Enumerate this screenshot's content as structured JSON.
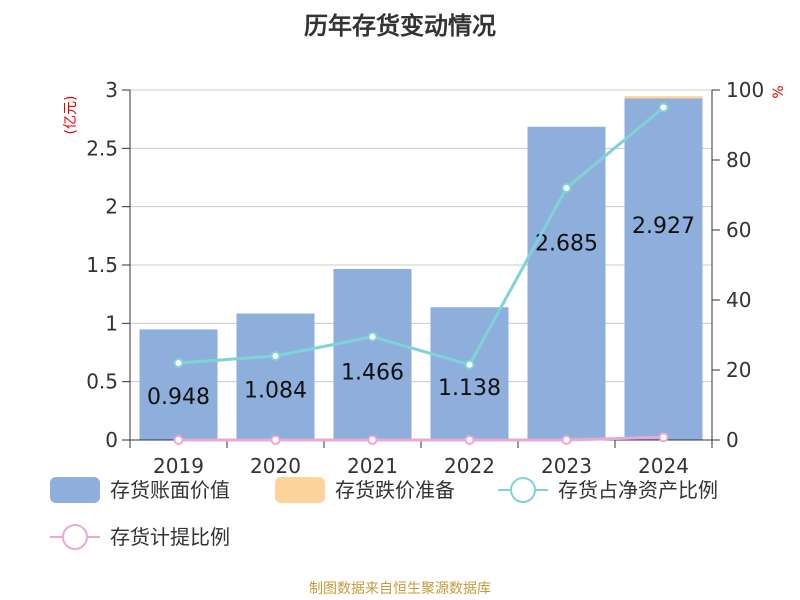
{
  "chart_data": {
    "type": "bar",
    "title": "历年存货变动情况",
    "left_unit": "(亿元)",
    "right_unit": "%",
    "categories": [
      "2019",
      "2020",
      "2021",
      "2022",
      "2023",
      "2024"
    ],
    "series": [
      {
        "name": "存货账面价值",
        "type": "bar",
        "axis": "left",
        "color": "#8eaedb",
        "values": [
          0.948,
          1.084,
          1.466,
          1.138,
          2.685,
          2.927
        ]
      },
      {
        "name": "存货跌价准备",
        "type": "bar",
        "axis": "left",
        "stacked": true,
        "color": "#fcd49c",
        "values": [
          0,
          0,
          0,
          0,
          0,
          0.02
        ]
      },
      {
        "name": "存货占净资产比例",
        "type": "line",
        "axis": "right",
        "color": "#7fd3d6",
        "values": [
          22,
          24,
          29.5,
          21.5,
          72,
          95
        ]
      },
      {
        "name": "存货计提比例",
        "type": "line",
        "axis": "right",
        "color": "#e7a9d6",
        "values": [
          0,
          0,
          0,
          0,
          0,
          0.8
        ]
      }
    ],
    "data_labels": [
      "0.948",
      "1.084",
      "1.466",
      "1.138",
      "2.685",
      "2.927"
    ],
    "left_axis": {
      "min": 0,
      "max": 3,
      "ticks": [
        "0",
        "0.5",
        "1",
        "1.5",
        "2",
        "2.5",
        "3"
      ]
    },
    "right_axis": {
      "min": 0,
      "max": 100,
      "ticks": [
        "0",
        "20",
        "40",
        "60",
        "80",
        "100"
      ]
    },
    "grid": true,
    "legend_position": "bottom"
  },
  "source": "制图数据来自恒生聚源数据库"
}
